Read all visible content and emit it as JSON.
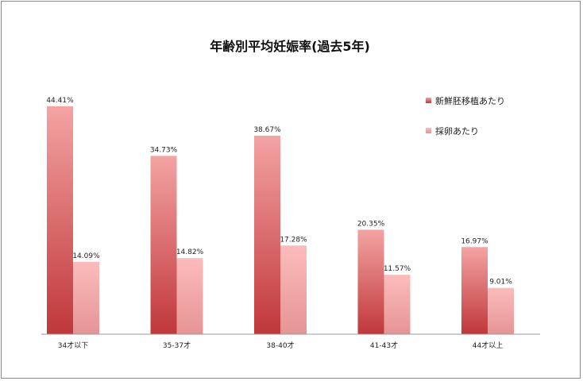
{
  "chart_data": {
    "type": "bar",
    "title": "年齢別平均妊娠率(過去5年)",
    "xlabel": "",
    "ylabel": "",
    "categories": [
      "34才以下",
      "35-37才",
      "38-40才",
      "41-43才",
      "44才以上"
    ],
    "series": [
      {
        "name": "新鮮胚移植あたり",
        "values": [
          44.41,
          34.73,
          38.67,
          20.35,
          16.97
        ],
        "labels": [
          "44.41%",
          "34.73%",
          "38.67%",
          "20.35%",
          "16.97%"
        ]
      },
      {
        "name": "採卵あたり",
        "values": [
          14.09,
          14.82,
          17.28,
          11.57,
          9.01
        ],
        "labels": [
          "14.09%",
          "14.82%",
          "17.28%",
          "11.57%",
          "9.01%"
        ]
      }
    ],
    "ylim": [
      0,
      45
    ],
    "grid": false,
    "legend": "top-right",
    "colors": {
      "series1_top": "#f4a3a3",
      "series1_bottom": "#c0373a",
      "series2_top": "#fcbcbc",
      "series2_bottom": "#e69494"
    }
  }
}
